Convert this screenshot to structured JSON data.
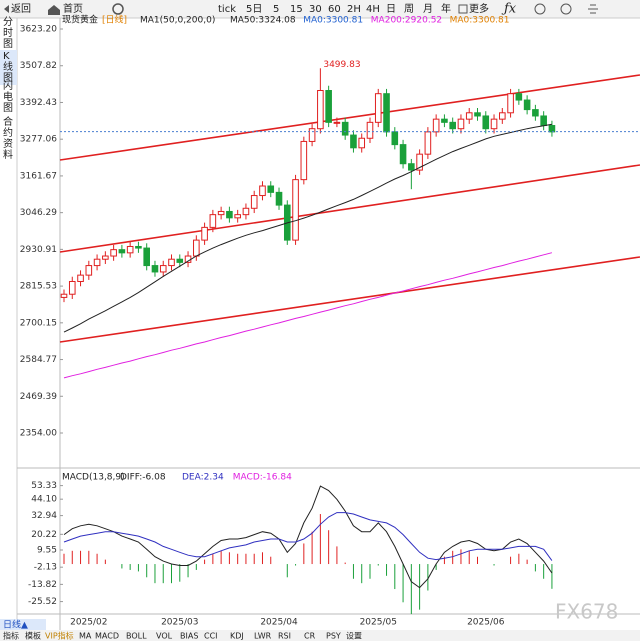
{
  "toolbar": {
    "back": "返回",
    "home": "首页",
    "periods": [
      "tick",
      "5日",
      "5",
      "15",
      "30",
      "60",
      "2H",
      "4H",
      "日",
      "周",
      "月",
      "年"
    ],
    "more": "更多"
  },
  "side_tabs": [
    "分时图",
    "K线图",
    "闪电图",
    "合约资料"
  ],
  "chart_data": [
    {
      "type": "candlestick",
      "title": "现货黄金",
      "period": "[日线]",
      "legend": [
        {
          "text": "MA1(50,0,200,0)",
          "color": "#222222"
        },
        {
          "text": "MA50:3324.08",
          "color": "#222222"
        },
        {
          "text": "MA0:3300.81",
          "color": "#2060d0"
        },
        {
          "text": "MA200:2920.52",
          "color": "#e020e0"
        },
        {
          "text": "MA0:3300.81",
          "color": "#e08000"
        }
      ],
      "categories": [
        null,
        null,
        null,
        "2025/02",
        null,
        null,
        null,
        null,
        null,
        null,
        null,
        null,
        null,
        null,
        "2025/03",
        null,
        null,
        null,
        null,
        null,
        null,
        null,
        null,
        null,
        null,
        null,
        "2025/04",
        null,
        null,
        null,
        null,
        null,
        null,
        null,
        null,
        null,
        null,
        null,
        "2025/05",
        null,
        null,
        null,
        null,
        null,
        null,
        null,
        null,
        null,
        null,
        null,
        null,
        "2025/06",
        null,
        null,
        null,
        null,
        null,
        null,
        null,
        null
      ],
      "open": [
        2780,
        2790,
        2830,
        2850,
        2880,
        2900,
        2910,
        2930,
        2920,
        2940,
        2935,
        2880,
        2860,
        2880,
        2900,
        2890,
        2910,
        2960,
        3000,
        3040,
        3050,
        3030,
        3040,
        3060,
        3100,
        3130,
        3110,
        3070,
        2960,
        3150,
        3270,
        3310,
        3430,
        3330,
        3330,
        3290,
        3250,
        3280,
        3330,
        3420,
        3300,
        3260,
        3200,
        3180,
        3230,
        3300,
        3340,
        3330,
        3310,
        3340,
        3360,
        3350,
        3310,
        3340,
        3360,
        3420,
        3400,
        3370,
        3350,
        3320
      ],
      "high": [
        2805,
        2845,
        2865,
        2895,
        2915,
        2925,
        2945,
        2945,
        2955,
        2955,
        2950,
        2895,
        2895,
        2915,
        2915,
        2925,
        2975,
        3015,
        3055,
        3065,
        3065,
        3055,
        3075,
        3115,
        3145,
        3145,
        3125,
        3085,
        3165,
        3285,
        3325,
        3499.83,
        3445,
        3345,
        3345,
        3305,
        3295,
        3345,
        3435,
        3435,
        3315,
        3275,
        3215,
        3245,
        3315,
        3355,
        3355,
        3345,
        3355,
        3375,
        3375,
        3365,
        3355,
        3375,
        3435,
        3435,
        3415,
        3385,
        3365,
        3335
      ],
      "low": [
        2765,
        2775,
        2815,
        2835,
        2865,
        2885,
        2895,
        2905,
        2905,
        2920,
        2865,
        2845,
        2845,
        2865,
        2875,
        2875,
        2895,
        2945,
        2985,
        3025,
        3015,
        3015,
        3025,
        3045,
        3085,
        3095,
        3055,
        2945,
        2945,
        3135,
        3255,
        3295,
        3315,
        3315,
        3275,
        3235,
        3235,
        3265,
        3315,
        3285,
        3245,
        3185,
        3120,
        3165,
        3215,
        3285,
        3315,
        3295,
        3295,
        3325,
        3335,
        3295,
        3295,
        3325,
        3345,
        3385,
        3355,
        3335,
        3305,
        3285
      ],
      "close": [
        2790,
        2830,
        2850,
        2880,
        2900,
        2910,
        2930,
        2920,
        2940,
        2935,
        2880,
        2860,
        2880,
        2900,
        2890,
        2910,
        2960,
        3000,
        3040,
        3050,
        3030,
        3040,
        3060,
        3100,
        3130,
        3110,
        3070,
        2960,
        3150,
        3270,
        3310,
        3430,
        3330,
        3330,
        3290,
        3250,
        3280,
        3330,
        3420,
        3300,
        3260,
        3200,
        3180,
        3230,
        3300,
        3340,
        3330,
        3310,
        3340,
        3360,
        3350,
        3310,
        3340,
        3360,
        3420,
        3400,
        3370,
        3350,
        3320,
        3300
      ],
      "up_color": "#e02020",
      "down_color": "#1aa03a",
      "series": [
        {
          "color": "#222222",
          "values": [
            2671,
            2684,
            2697,
            2712,
            2725,
            2738,
            2752,
            2766,
            2780,
            2795,
            2812,
            2829,
            2846,
            2862,
            2878,
            2894,
            2910,
            2923,
            2935,
            2946,
            2956,
            2966,
            2975,
            2983,
            2990,
            2998,
            3006,
            3014,
            3021,
            3029,
            3038,
            3048,
            3058,
            3068,
            3078,
            3088,
            3100,
            3113,
            3126,
            3139,
            3152,
            3163,
            3175,
            3188,
            3201,
            3214,
            3226,
            3238,
            3248,
            3258,
            3268,
            3278,
            3286,
            3292,
            3298,
            3304,
            3310,
            3315,
            3319,
            3324.08
          ]
        },
        {
          "color": "#e020e0",
          "values": [
            2527,
            2534,
            2540,
            2547,
            2554,
            2560,
            2567,
            2574,
            2580,
            2587,
            2594,
            2600,
            2607,
            2614,
            2620,
            2627,
            2634,
            2640,
            2647,
            2654,
            2660,
            2667,
            2674,
            2680,
            2687,
            2694,
            2700,
            2707,
            2714,
            2720,
            2727,
            2734,
            2740,
            2747,
            2754,
            2760,
            2767,
            2774,
            2780,
            2787,
            2794,
            2800,
            2807,
            2814,
            2820,
            2827,
            2834,
            2840,
            2847,
            2854,
            2860,
            2867,
            2874,
            2880,
            2887,
            2894,
            2900,
            2907,
            2914,
            2920.52
          ]
        }
      ],
      "last_price": 3300.81,
      "ylim": [
        2253.5,
        3651.5
      ],
      "yticks": [
        {
          "value": 3623.2,
          "label": "3623.20"
        },
        3507.82,
        3392.43,
        3277.06,
        3161.67,
        3046.29,
        2930.91,
        2815.53,
        2700.15,
        2584.77,
        2469.39,
        {
          "value": 2354,
          "label": "2354.00"
        }
      ]
    },
    {
      "type": "macd",
      "title": "MACD(13,8,9)",
      "legend": [
        {
          "text": "DIFF:-6.08",
          "color": "#222222"
        },
        {
          "text": "DEA:2.34",
          "color": "#3030c0"
        },
        {
          "text": "MACD:-16.84",
          "color": "#e020e0"
        }
      ],
      "series": [
        {
          "color": "#222222",
          "values": [
            20,
            24,
            26,
            27,
            26,
            24,
            22,
            19,
            17,
            15,
            10,
            5,
            2,
            0,
            -1,
            -1,
            2,
            7,
            12,
            16,
            17,
            17,
            18,
            20,
            22,
            21,
            17,
            8,
            14,
            28,
            38,
            53,
            50,
            44,
            36,
            26,
            22,
            22,
            28,
            22,
            12,
            0,
            -12,
            -16,
            -10,
            0,
            8,
            12,
            15,
            16,
            14,
            10,
            9,
            10,
            15,
            17,
            14,
            8,
            2,
            -6.08
          ]
        },
        {
          "color": "#3030c0",
          "values": [
            15,
            17,
            19,
            20,
            21,
            22,
            22,
            21,
            20,
            19,
            17,
            15,
            12,
            10,
            8,
            6,
            5,
            5,
            7,
            9,
            11,
            12,
            13,
            15,
            16,
            17,
            17,
            15,
            15,
            17,
            21,
            27,
            32,
            35,
            35,
            34,
            32,
            30,
            29,
            28,
            25,
            20,
            14,
            8,
            4,
            3,
            4,
            5,
            7,
            9,
            10,
            10,
            10,
            10,
            11,
            12,
            12,
            12,
            10,
            2.34
          ]
        }
      ],
      "histogram": [
        7,
        9,
        9,
        9,
        7,
        3,
        0,
        -3,
        -4,
        -5,
        -9,
        -13,
        -13,
        -13,
        -12,
        -9,
        -4,
        3,
        7,
        9,
        8,
        7,
        7,
        7,
        8,
        5,
        0,
        -9,
        -1,
        14,
        22,
        34,
        23,
        12,
        1,
        -10,
        -13,
        -10,
        -1,
        -8,
        -17,
        -26,
        -34,
        -31,
        -18,
        -4,
        5,
        9,
        10,
        9,
        5,
        0,
        -1,
        0,
        5,
        7,
        3,
        -5,
        -10,
        -16.84
      ],
      "up_color": "#e02020",
      "down_color": "#1aa03a",
      "ylim": [
        -32.6,
        58.5
      ],
      "yticks": [
        53.33,
        {
          "value": 44.1,
          "label": "44.10"
        },
        32.94,
        20.22,
        9.55,
        -2.13,
        -13.82,
        -25.52
      ]
    }
  ],
  "bottom_bar": {
    "period": "日线▲",
    "tabs": [
      "指标",
      "模板",
      "VIP指标",
      "MA",
      "MACD",
      "BOLL",
      "VOL",
      "BIAS",
      "CCI",
      "KDJ",
      "LWR",
      "RSI",
      "CR",
      "PSY",
      "设置"
    ]
  },
  "watermark": "FX678"
}
